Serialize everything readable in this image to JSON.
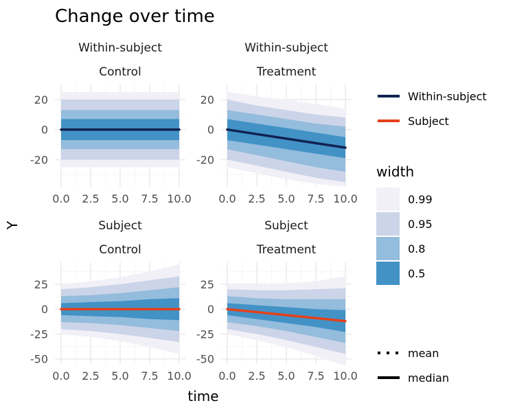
{
  "chart_data": {
    "type": "area",
    "title": "Change over time",
    "xlabel": "time",
    "ylabel": "Y",
    "x_ticks": [
      "0.0",
      "2.5",
      "5.0",
      "7.5",
      "10.0"
    ],
    "xlim": [
      0,
      10
    ],
    "grid": true,
    "legend": {
      "series": {
        "position": "right-top",
        "entries": [
          {
            "name": "Within-subject",
            "color": "#0f2350"
          },
          {
            "name": "Subject",
            "color": "#e5411c"
          }
        ]
      },
      "width": {
        "title": "width",
        "position": "right-middle",
        "entries": [
          {
            "name": "0.99",
            "color": "#f2f0f7"
          },
          {
            "name": "0.95",
            "color": "#cbd4e8"
          },
          {
            "name": "0.8",
            "color": "#94bcdc"
          },
          {
            "name": "0.5",
            "color": "#4292c6"
          }
        ]
      },
      "point_interval": {
        "position": "right-bottom",
        "entries": [
          {
            "name": "mean",
            "linestyle": "dotted"
          },
          {
            "name": "median",
            "linestyle": "solid"
          }
        ]
      }
    },
    "panels": [
      {
        "row_label": "Within-subject",
        "col_label": "Control",
        "ylim": [
          -38,
          30
        ],
        "y_ticks": [
          20,
          0,
          -20
        ],
        "y_tick_labels": [
          "20",
          "0",
          "-20"
        ],
        "series": "Within-subject",
        "center": {
          "x": [
            0,
            2.5,
            5,
            7.5,
            10
          ],
          "y": [
            0,
            0,
            0,
            0,
            0
          ]
        },
        "bands": [
          {
            "width": "0.99",
            "lower": [
              -25,
              -25,
              -25,
              -25,
              -25
            ],
            "upper": [
              25,
              25,
              25,
              25,
              25
            ]
          },
          {
            "width": "0.95",
            "lower": [
              -20,
              -20,
              -20,
              -20,
              -20
            ],
            "upper": [
              20,
              20,
              20,
              20,
              20
            ]
          },
          {
            "width": "0.8",
            "lower": [
              -13,
              -13,
              -13,
              -13,
              -13
            ],
            "upper": [
              13,
              13,
              13,
              13,
              13
            ]
          },
          {
            "width": "0.5",
            "lower": [
              -7,
              -7,
              -7,
              -7,
              -7
            ],
            "upper": [
              7,
              7,
              7,
              7,
              7
            ]
          }
        ]
      },
      {
        "row_label": "Within-subject",
        "col_label": "Treatment",
        "ylim": [
          -38,
          30
        ],
        "y_ticks": [
          20,
          0,
          -20
        ],
        "y_tick_labels": [
          "20",
          "0",
          "-20"
        ],
        "series": "Within-subject",
        "center": {
          "x": [
            0,
            2.5,
            5,
            7.5,
            10
          ],
          "y": [
            0,
            -3,
            -6,
            -9,
            -12
          ]
        },
        "bands": [
          {
            "width": "0.99",
            "lower": [
              -25,
              -29,
              -33,
              -36,
              -38
            ],
            "upper": [
              25,
              22,
              20,
              17,
              14
            ]
          },
          {
            "width": "0.95",
            "lower": [
              -20,
              -24,
              -28,
              -32,
              -35
            ],
            "upper": [
              20,
              16,
              13,
              10,
              8
            ]
          },
          {
            "width": "0.8",
            "lower": [
              -13,
              -17,
              -21,
              -25,
              -28
            ],
            "upper": [
              13,
              10,
              7,
              4,
              2
            ]
          },
          {
            "width": "0.5",
            "lower": [
              -7,
              -10,
              -13,
              -16,
              -19
            ],
            "upper": [
              7,
              4,
              1,
              -2,
              -5
            ]
          }
        ]
      },
      {
        "row_label": "Subject",
        "col_label": "Control",
        "ylim": [
          -55,
          47
        ],
        "y_ticks": [
          25,
          0,
          -25,
          -50
        ],
        "y_tick_labels": [
          "25",
          "0",
          "-25",
          "-50"
        ],
        "series": "Subject",
        "center": {
          "x": [
            0,
            2.5,
            5,
            7.5,
            10
          ],
          "y": [
            0,
            0,
            0,
            0,
            0
          ]
        },
        "bands": [
          {
            "width": "0.99",
            "lower": [
              -25,
              -28,
              -32,
              -38,
              -45
            ],
            "upper": [
              25,
              28,
              32,
              38,
              45
            ]
          },
          {
            "width": "0.95",
            "lower": [
              -20,
              -22,
              -25,
              -29,
              -33
            ],
            "upper": [
              20,
              22,
              25,
              29,
              33
            ]
          },
          {
            "width": "0.8",
            "lower": [
              -13,
              -14,
              -16,
              -19,
              -22
            ],
            "upper": [
              13,
              14,
              16,
              19,
              22
            ]
          },
          {
            "width": "0.5",
            "lower": [
              -6,
              -7,
              -8,
              -10,
              -11
            ],
            "upper": [
              6,
              7,
              8,
              10,
              11
            ]
          }
        ]
      },
      {
        "row_label": "Subject",
        "col_label": "Treatment",
        "ylim": [
          -55,
          47
        ],
        "y_ticks": [
          25,
          0,
          -25,
          -50
        ],
        "y_tick_labels": [
          "25",
          "0",
          "-25",
          "-50"
        ],
        "series": "Subject",
        "center": {
          "x": [
            0,
            2.5,
            5,
            7.5,
            10
          ],
          "y": [
            0,
            -3,
            -6,
            -9,
            -12
          ]
        },
        "bands": [
          {
            "width": "0.99",
            "lower": [
              -25,
              -31,
              -38,
              -47,
              -57
            ],
            "upper": [
              25,
              25,
              26,
              28,
              33
            ]
          },
          {
            "width": "0.95",
            "lower": [
              -20,
              -25,
              -31,
              -38,
              -45
            ],
            "upper": [
              20,
              19,
              19,
              20,
              21
            ]
          },
          {
            "width": "0.8",
            "lower": [
              -13,
              -17,
              -22,
              -28,
              -34
            ],
            "upper": [
              13,
              11,
              10,
              10,
              10
            ]
          },
          {
            "width": "0.5",
            "lower": [
              -6,
              -10,
              -14,
              -18,
              -23
            ],
            "upper": [
              6,
              4,
              2,
              0,
              -1
            ]
          }
        ]
      }
    ]
  }
}
